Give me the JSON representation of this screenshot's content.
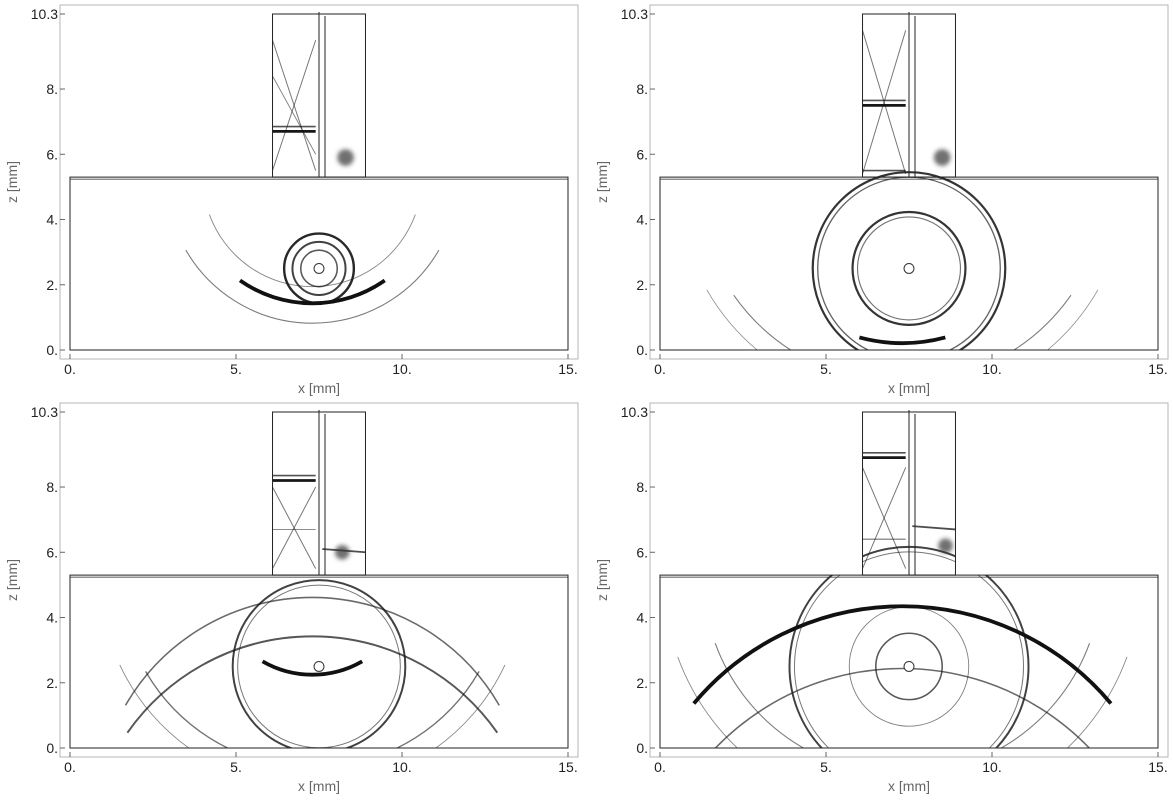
{
  "chart_data": [
    {
      "type": "heatmap",
      "title": "",
      "xlabel": "x [mm]",
      "ylabel": "z [mm]",
      "xlim": [
        0,
        15
      ],
      "ylim": [
        0,
        10.3
      ],
      "xticks": [
        "0.",
        "5.",
        "10.",
        "15."
      ],
      "yticks": [
        "0.",
        "2.",
        "4.",
        "6.",
        "8.",
        "10.3"
      ],
      "grid": false,
      "legend": "none",
      "domain": {
        "block": {
          "x": [
            0,
            15
          ],
          "z": [
            0,
            5.3
          ]
        },
        "wedge": {
          "x": [
            6.1,
            8.9
          ],
          "z": [
            5.3,
            10.3
          ],
          "divider_x": 7.5
        },
        "scatterer": {
          "x": 7.5,
          "z": 2.5,
          "r": 0.12
        }
      },
      "features": {
        "circles": [
          {
            "cx": 7.5,
            "cz": 2.5,
            "r": 1.05,
            "w": 2.2
          },
          {
            "cx": 7.5,
            "cz": 2.5,
            "r": 0.8,
            "w": 1.8
          },
          {
            "cx": 7.5,
            "cz": 2.5,
            "r": 0.55,
            "w": 1.4
          }
        ],
        "arcs": [
          {
            "cx": 7.3,
            "cz": 5.3,
            "r": 3.8,
            "w": 3.5,
            "a0": 235,
            "a1": 305
          },
          {
            "cx": 7.3,
            "cz": 5.3,
            "r": 4.4,
            "w": 1.0,
            "a0": 210,
            "a1": 330
          },
          {
            "cx": 7.3,
            "cz": 5.3,
            "r": 3.3,
            "w": 0.8,
            "a0": 200,
            "a1": 340
          }
        ],
        "wedge_marks": [
          {
            "x1": 6.1,
            "z1": 6.7,
            "x2": 7.4,
            "z2": 6.7,
            "w": 2.5
          },
          {
            "x1": 6.1,
            "z1": 6.85,
            "x2": 7.4,
            "z2": 6.85,
            "w": 1.5
          },
          {
            "x1": 6.1,
            "z1": 9.5,
            "x2": 7.4,
            "z2": 5.5,
            "w": 0.9
          },
          {
            "x1": 7.4,
            "z1": 9.5,
            "x2": 6.1,
            "z2": 5.5,
            "w": 0.9
          },
          {
            "x1": 6.1,
            "z1": 8.4,
            "x2": 7.4,
            "z2": 6.0,
            "w": 0.8
          }
        ],
        "blobs": [
          {
            "x": 8.3,
            "z": 5.9,
            "r": 0.25
          }
        ]
      }
    },
    {
      "type": "heatmap",
      "title": "",
      "xlabel": "x [mm]",
      "ylabel": "z [mm]",
      "xlim": [
        0,
        15
      ],
      "ylim": [
        0,
        10.3
      ],
      "xticks": [
        "0.",
        "5.",
        "10.",
        "15."
      ],
      "yticks": [
        "0.",
        "2.",
        "4.",
        "6.",
        "8.",
        "10.3"
      ],
      "grid": false,
      "legend": "none",
      "domain": {
        "block": {
          "x": [
            0,
            15
          ],
          "z": [
            0,
            5.3
          ]
        },
        "wedge": {
          "x": [
            6.1,
            8.9
          ],
          "z": [
            5.3,
            10.3
          ],
          "divider_x": 7.5
        },
        "scatterer": {
          "x": 7.5,
          "z": 2.5,
          "r": 0.12
        }
      },
      "features": {
        "circles": [
          {
            "cx": 7.5,
            "cz": 2.5,
            "r": 2.9,
            "w": 2.0
          },
          {
            "cx": 7.5,
            "cz": 2.5,
            "r": 2.75,
            "w": 1.2
          },
          {
            "cx": 7.5,
            "cz": 2.5,
            "r": 1.7,
            "w": 2.0
          },
          {
            "cx": 7.5,
            "cz": 2.5,
            "r": 1.55,
            "w": 1.0
          }
        ],
        "arcs": [
          {
            "cx": 7.3,
            "cz": 5.3,
            "r": 5.0,
            "w": 3.5,
            "a0": 255,
            "a1": 285
          },
          {
            "cx": 7.3,
            "cz": 5.3,
            "r": 6.2,
            "w": 1.0,
            "a0": 215,
            "a1": 325
          },
          {
            "cx": 7.3,
            "cz": 5.3,
            "r": 6.8,
            "w": 0.7,
            "a0": 210,
            "a1": 330
          }
        ],
        "wedge_marks": [
          {
            "x1": 6.1,
            "z1": 7.5,
            "x2": 7.4,
            "z2": 7.5,
            "w": 2.5
          },
          {
            "x1": 6.1,
            "z1": 7.65,
            "x2": 7.4,
            "z2": 7.65,
            "w": 1.5
          },
          {
            "x1": 6.1,
            "z1": 9.8,
            "x2": 7.4,
            "z2": 5.4,
            "w": 0.9
          },
          {
            "x1": 7.4,
            "z1": 9.8,
            "x2": 6.1,
            "z2": 5.4,
            "w": 0.9
          },
          {
            "x1": 6.1,
            "z1": 5.5,
            "x2": 7.4,
            "z2": 5.5,
            "w": 1.5
          }
        ],
        "blobs": [
          {
            "x": 8.5,
            "z": 5.9,
            "r": 0.25
          }
        ]
      }
    },
    {
      "type": "heatmap",
      "title": "",
      "xlabel": "x [mm]",
      "ylabel": "z [mm]",
      "xlim": [
        0,
        15
      ],
      "ylim": [
        0,
        10.3
      ],
      "xticks": [
        "0.",
        "5.",
        "10.",
        "15."
      ],
      "yticks": [
        "0.",
        "2.",
        "4.",
        "6.",
        "8.",
        "10.3"
      ],
      "grid": false,
      "legend": "none",
      "domain": {
        "block": {
          "x": [
            0,
            15
          ],
          "z": [
            0,
            5.3
          ]
        },
        "wedge": {
          "x": [
            6.1,
            8.9
          ],
          "z": [
            5.3,
            10.3
          ],
          "divider_x": 7.5
        },
        "scatterer": {
          "x": 7.5,
          "z": 2.5,
          "r": 0.12
        }
      },
      "features": {
        "circles": [
          {
            "cx": 7.5,
            "cz": 2.5,
            "r": 2.6,
            "w": 1.8
          },
          {
            "cx": 7.5,
            "cz": 2.5,
            "r": 2.45,
            "w": 0.9
          }
        ],
        "arcs": [
          {
            "cx": 7.3,
            "cz": 5.3,
            "r": 3.0,
            "w": 3.5,
            "a0": 240,
            "a1": 300
          },
          {
            "cx": 7.3,
            "cz": 5.3,
            "r": 5.8,
            "w": 1.2,
            "a0": 210,
            "a1": 330
          },
          {
            "cx": 7.3,
            "cz": 5.3,
            "r": 6.4,
            "w": 0.8,
            "a0": 205,
            "a1": 335
          },
          {
            "cx": 7.3,
            "cz": -2.0,
            "r": 6.5,
            "w": 1.4,
            "a0": 30,
            "a1": 150
          },
          {
            "cx": 7.3,
            "cz": -3.5,
            "r": 6.8,
            "w": 1.8,
            "a0": 35,
            "a1": 145
          }
        ],
        "wedge_marks": [
          {
            "x1": 6.1,
            "z1": 8.2,
            "x2": 7.4,
            "z2": 8.2,
            "w": 2.5
          },
          {
            "x1": 6.1,
            "z1": 8.35,
            "x2": 7.4,
            "z2": 8.35,
            "w": 1.5
          },
          {
            "x1": 6.1,
            "z1": 8.0,
            "x2": 7.4,
            "z2": 5.5,
            "w": 0.9
          },
          {
            "x1": 7.4,
            "z1": 8.0,
            "x2": 6.1,
            "z2": 5.5,
            "w": 0.9
          },
          {
            "x1": 6.1,
            "z1": 6.7,
            "x2": 7.4,
            "z2": 6.7,
            "w": 0.8
          },
          {
            "x1": 7.6,
            "z1": 6.1,
            "x2": 8.9,
            "z2": 6.0,
            "w": 1.6
          }
        ],
        "blobs": [
          {
            "x": 8.2,
            "z": 6.0,
            "r": 0.22
          }
        ]
      }
    },
    {
      "type": "heatmap",
      "title": "",
      "xlabel": "x [mm]",
      "ylabel": "z [mm]",
      "xlim": [
        0,
        15
      ],
      "ylim": [
        0,
        10.3
      ],
      "xticks": [
        "0.",
        "5.",
        "10.",
        "15."
      ],
      "yticks": [
        "0.",
        "2.",
        "4.",
        "6.",
        "8.",
        "10.3"
      ],
      "grid": false,
      "legend": "none",
      "domain": {
        "block": {
          "x": [
            0,
            15
          ],
          "z": [
            0,
            5.3
          ]
        },
        "wedge": {
          "x": [
            6.1,
            8.9
          ],
          "z": [
            5.3,
            10.3
          ],
          "divider_x": 7.5
        },
        "scatterer": {
          "x": 7.5,
          "z": 2.5,
          "r": 0.12
        }
      },
      "features": {
        "circles": [
          {
            "cx": 7.5,
            "cz": 2.5,
            "r": 3.6,
            "w": 1.8
          },
          {
            "cx": 7.5,
            "cz": 2.5,
            "r": 3.45,
            "w": 0.9
          },
          {
            "cx": 7.5,
            "cz": 2.5,
            "r": 1.0,
            "w": 1.4
          },
          {
            "cx": 7.5,
            "cz": 2.5,
            "r": 1.8,
            "w": 0.8
          }
        ],
        "arcs": [
          {
            "cx": 7.3,
            "cz": -4.0,
            "r": 8.2,
            "w": 3.5,
            "a0": 40,
            "a1": 140
          },
          {
            "cx": 7.3,
            "cz": -5.5,
            "r": 7.8,
            "w": 1.4,
            "a0": 30,
            "a1": 150
          },
          {
            "cx": 7.3,
            "cz": 5.3,
            "r": 6.0,
            "w": 1.0,
            "a0": 200,
            "a1": 340
          },
          {
            "cx": 7.3,
            "cz": 5.3,
            "r": 7.2,
            "w": 0.8,
            "a0": 200,
            "a1": 340
          }
        ],
        "wedge_marks": [
          {
            "x1": 6.1,
            "z1": 8.9,
            "x2": 7.4,
            "z2": 8.9,
            "w": 2.5
          },
          {
            "x1": 6.1,
            "z1": 9.05,
            "x2": 7.4,
            "z2": 9.05,
            "w": 1.5
          },
          {
            "x1": 6.1,
            "z1": 8.6,
            "x2": 7.4,
            "z2": 5.5,
            "w": 0.9
          },
          {
            "x1": 7.4,
            "z1": 8.6,
            "x2": 6.1,
            "z2": 5.5,
            "w": 0.9
          },
          {
            "x1": 6.1,
            "z1": 6.4,
            "x2": 7.4,
            "z2": 6.4,
            "w": 1.0
          },
          {
            "x1": 7.6,
            "z1": 6.8,
            "x2": 8.9,
            "z2": 6.7,
            "w": 1.6
          }
        ],
        "blobs": [
          {
            "x": 8.6,
            "z": 6.2,
            "r": 0.22
          }
        ]
      }
    }
  ]
}
